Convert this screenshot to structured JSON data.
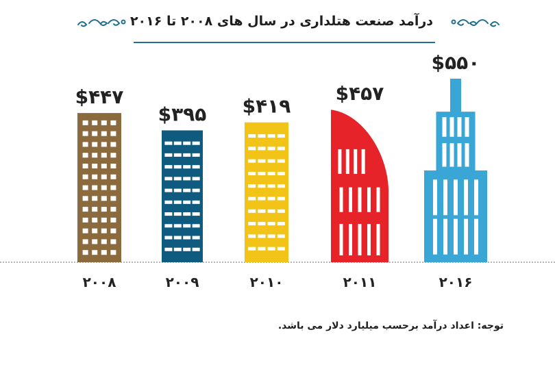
{
  "title": "درآمد صنعت هتلداری در سال های ۲۰۰۸ تا ۲۰۱۶",
  "note": "توجه: اعداد درآمد برحسب میلیارد دلار می باشد.",
  "colors": {
    "ornament": "#1f6f8f",
    "baseline": "#9a9a9a",
    "window": "#ffffff"
  },
  "chart_data": {
    "type": "bar",
    "style": "building-pictograph",
    "categories": [
      "۲۰۰۸",
      "۲۰۰۹",
      "۲۰۱۰",
      "۲۰۱۱",
      "۲۰۱۶"
    ],
    "values": [
      447,
      395,
      419,
      457,
      550
    ],
    "value_labels": [
      "$۴۴۷",
      "$۳۹۵",
      "$۴۱۹",
      "$۴۵۷",
      "$۵۵۰"
    ],
    "bar_colors": [
      "#8b6a3e",
      "#0f5a7f",
      "#f2c418",
      "#e52329",
      "#3aa6d5"
    ],
    "shapes": [
      "tower",
      "block",
      "block",
      "curved-roof",
      "skyscraper-spire"
    ],
    "ylim": [
      0,
      560
    ],
    "grid": false,
    "legend": "none"
  }
}
